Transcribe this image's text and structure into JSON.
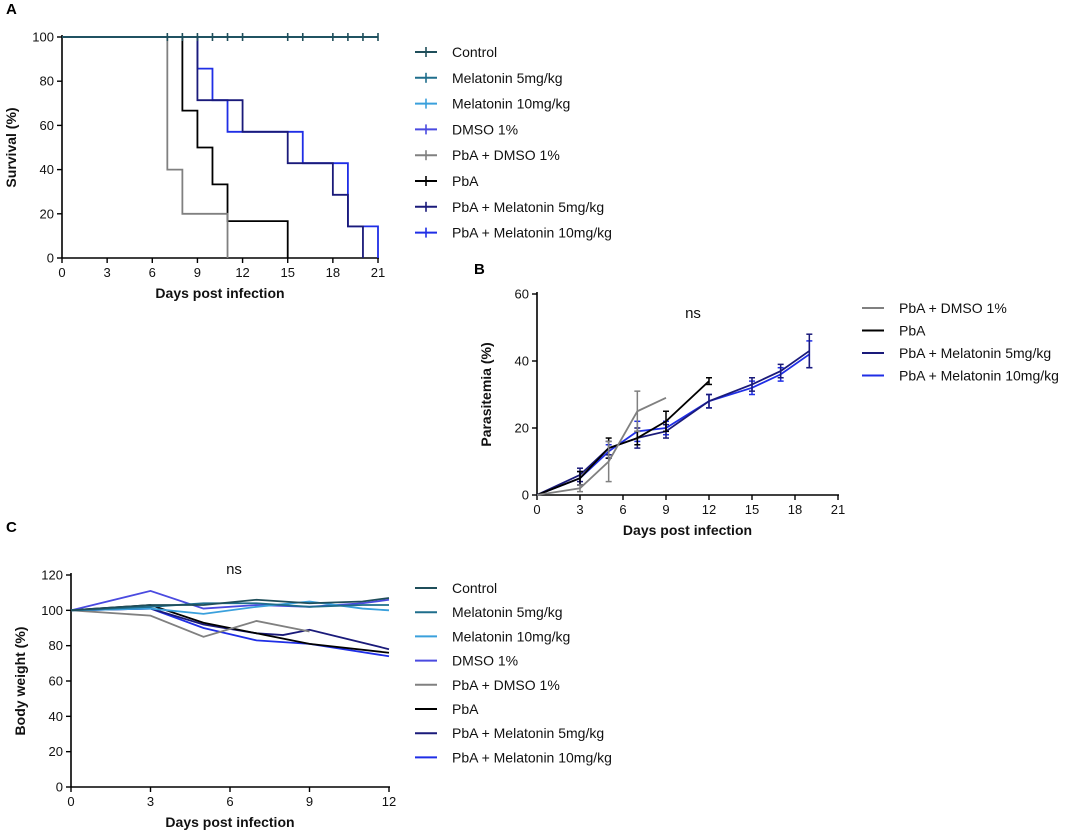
{
  "colors": {
    "control": "#1f4e5a",
    "melatonin5": "#1f6e8c",
    "melatonin10": "#3aa0dc",
    "dmso": "#4a4ae0",
    "pba_dmso": "#808080",
    "pba": "#000000",
    "pba_mel5": "#1a1a7a",
    "pba_mel10": "#1f2ee6"
  },
  "chart_data": [
    {
      "panel": "A",
      "type": "line",
      "subtype": "kaplan-meier",
      "xlabel": "Days post infection",
      "ylabel": "Survival (%)",
      "xlim": [
        0,
        21
      ],
      "ylim": [
        0,
        100
      ],
      "xticks": [
        0,
        3,
        6,
        9,
        12,
        15,
        18,
        21
      ],
      "yticks": [
        0,
        20,
        40,
        60,
        80,
        100
      ],
      "legend": [
        "Control",
        "Melatonin 5mg/kg",
        "Melatonin 10mg/kg",
        "DMSO 1%",
        "PbA + DMSO 1%",
        "PbA",
        "PbA + Melatonin 5mg/kg",
        "PbA + Melatonin 10mg/kg"
      ],
      "series": [
        {
          "name": "Control",
          "color_key": "control",
          "steps": [
            [
              0,
              100
            ],
            [
              21,
              100
            ]
          ],
          "censor": [
            7,
            8,
            9,
            10,
            11,
            12,
            15,
            16,
            18,
            19,
            20,
            21
          ]
        },
        {
          "name": "Melatonin 5mg/kg",
          "color_key": "melatonin5",
          "steps": [
            [
              0,
              100
            ],
            [
              21,
              100
            ]
          ],
          "censor": []
        },
        {
          "name": "Melatonin 10mg/kg",
          "color_key": "melatonin10",
          "steps": [
            [
              0,
              100
            ],
            [
              21,
              100
            ]
          ],
          "censor": []
        },
        {
          "name": "DMSO 1%",
          "color_key": "dmso",
          "steps": [
            [
              0,
              100
            ],
            [
              21,
              100
            ]
          ],
          "censor": []
        },
        {
          "name": "PbA + DMSO 1%",
          "color_key": "pba_dmso",
          "steps": [
            [
              0,
              100
            ],
            [
              7,
              40
            ],
            [
              8,
              20
            ],
            [
              11,
              0
            ]
          ],
          "censor": []
        },
        {
          "name": "PbA",
          "color_key": "pba",
          "steps": [
            [
              0,
              100
            ],
            [
              8,
              66.7
            ],
            [
              9,
              50
            ],
            [
              10,
              33.3
            ],
            [
              11,
              16.7
            ],
            [
              15,
              0
            ]
          ],
          "censor": []
        },
        {
          "name": "PbA + Melatonin 5mg/kg",
          "color_key": "pba_mel5",
          "steps": [
            [
              0,
              100
            ],
            [
              9,
              71.4
            ],
            [
              12,
              57.1
            ],
            [
              15,
              42.9
            ],
            [
              18,
              28.6
            ],
            [
              19,
              14.3
            ],
            [
              20,
              0
            ]
          ],
          "censor": []
        },
        {
          "name": "PbA + Melatonin 10mg/kg",
          "color_key": "pba_mel10",
          "steps": [
            [
              0,
              100
            ],
            [
              9,
              85.7
            ],
            [
              10,
              71.4
            ],
            [
              11,
              57.1
            ],
            [
              16,
              42.9
            ],
            [
              19,
              14.3
            ],
            [
              21,
              0
            ]
          ],
          "censor": []
        }
      ]
    },
    {
      "panel": "B",
      "type": "line",
      "xlabel": "Days post infection",
      "ylabel": "Parasitemia (%)",
      "annotation": "ns",
      "xlim": [
        0,
        21
      ],
      "ylim": [
        0,
        60
      ],
      "xticks": [
        0,
        3,
        6,
        9,
        12,
        15,
        18,
        21
      ],
      "yticks": [
        0,
        20,
        40,
        60
      ],
      "legend": [
        "PbA + DMSO 1%",
        "PbA",
        "PbA + Melatonin 5mg/kg",
        "PbA + Melatonin 10mg/kg"
      ],
      "series": [
        {
          "name": "PbA + DMSO 1%",
          "color_key": "pba_dmso",
          "x": [
            0,
            3,
            5,
            7,
            9
          ],
          "y": [
            0,
            2,
            10,
            25,
            29
          ],
          "err": [
            0,
            1,
            6,
            6,
            0
          ]
        },
        {
          "name": "PbA",
          "color_key": "pba",
          "x": [
            0,
            3,
            5,
            7,
            9,
            12
          ],
          "y": [
            0,
            5,
            14,
            17,
            22,
            34
          ],
          "err": [
            0,
            2,
            3,
            2,
            3,
            1
          ]
        },
        {
          "name": "PbA + Melatonin 5mg/kg",
          "color_key": "pba_mel5",
          "x": [
            0,
            3,
            5,
            7,
            9,
            12,
            15,
            17,
            19
          ],
          "y": [
            0,
            6,
            14,
            17,
            19,
            28,
            33,
            37,
            43
          ],
          "err": [
            0,
            2,
            2,
            3,
            2,
            2,
            2,
            2,
            5
          ]
        },
        {
          "name": "PbA + Melatonin 10mg/kg",
          "color_key": "pba_mel10",
          "x": [
            0,
            3,
            5,
            7,
            9,
            12,
            15,
            17,
            19
          ],
          "y": [
            0,
            5,
            13,
            19,
            20,
            28,
            32,
            36,
            42
          ],
          "err": [
            0,
            2,
            2,
            3,
            2,
            2,
            2,
            2,
            4
          ]
        }
      ]
    },
    {
      "panel": "C",
      "type": "line",
      "xlabel": "Days post infection",
      "ylabel": "Body weight (%)",
      "annotation": "ns",
      "xlim": [
        0,
        12
      ],
      "ylim": [
        0,
        120
      ],
      "xticks": [
        0,
        3,
        6,
        9,
        12
      ],
      "yticks": [
        0,
        20,
        40,
        60,
        80,
        100,
        120
      ],
      "legend": [
        "Control",
        "Melatonin 5mg/kg",
        "Melatonin 10mg/kg",
        "DMSO 1%",
        "PbA + DMSO 1%",
        "PbA",
        "PbA + Melatonin 5mg/kg",
        "PbA + Melatonin 10mg/kg"
      ],
      "series": [
        {
          "name": "Control",
          "color_key": "control",
          "x": [
            0,
            3,
            5,
            7,
            9,
            11,
            12
          ],
          "y": [
            100,
            103,
            103,
            106,
            104,
            105,
            107
          ]
        },
        {
          "name": "Melatonin 5mg/kg",
          "color_key": "melatonin5",
          "x": [
            0,
            3,
            5,
            7,
            9,
            11,
            12
          ],
          "y": [
            100,
            102,
            104,
            104,
            102,
            103,
            103
          ]
        },
        {
          "name": "Melatonin 10mg/kg",
          "color_key": "melatonin10",
          "x": [
            0,
            3,
            5,
            7,
            9,
            11,
            12
          ],
          "y": [
            100,
            101,
            98,
            102,
            105,
            101,
            100
          ]
        },
        {
          "name": "DMSO 1%",
          "color_key": "dmso",
          "x": [
            0,
            3,
            5,
            7,
            9,
            11,
            12
          ],
          "y": [
            100,
            111,
            101,
            103,
            102,
            104,
            106
          ]
        },
        {
          "name": "PbA + DMSO 1%",
          "color_key": "pba_dmso",
          "x": [
            0,
            3,
            5,
            7,
            9
          ],
          "y": [
            100,
            97,
            85,
            94,
            88
          ]
        },
        {
          "name": "PbA",
          "color_key": "pba",
          "x": [
            0,
            3,
            5,
            7,
            9,
            12
          ],
          "y": [
            100,
            103,
            93,
            87,
            81,
            76
          ]
        },
        {
          "name": "PbA + Melatonin 5mg/kg",
          "color_key": "pba_mel5",
          "x": [
            0,
            3,
            5,
            7,
            8,
            9,
            12
          ],
          "y": [
            100,
            101,
            92,
            87,
            86,
            89,
            78
          ]
        },
        {
          "name": "PbA + Melatonin 10mg/kg",
          "color_key": "pba_mel10",
          "x": [
            0,
            3,
            5,
            7,
            9,
            12
          ],
          "y": [
            100,
            101,
            90,
            83,
            81,
            74
          ]
        }
      ]
    }
  ]
}
